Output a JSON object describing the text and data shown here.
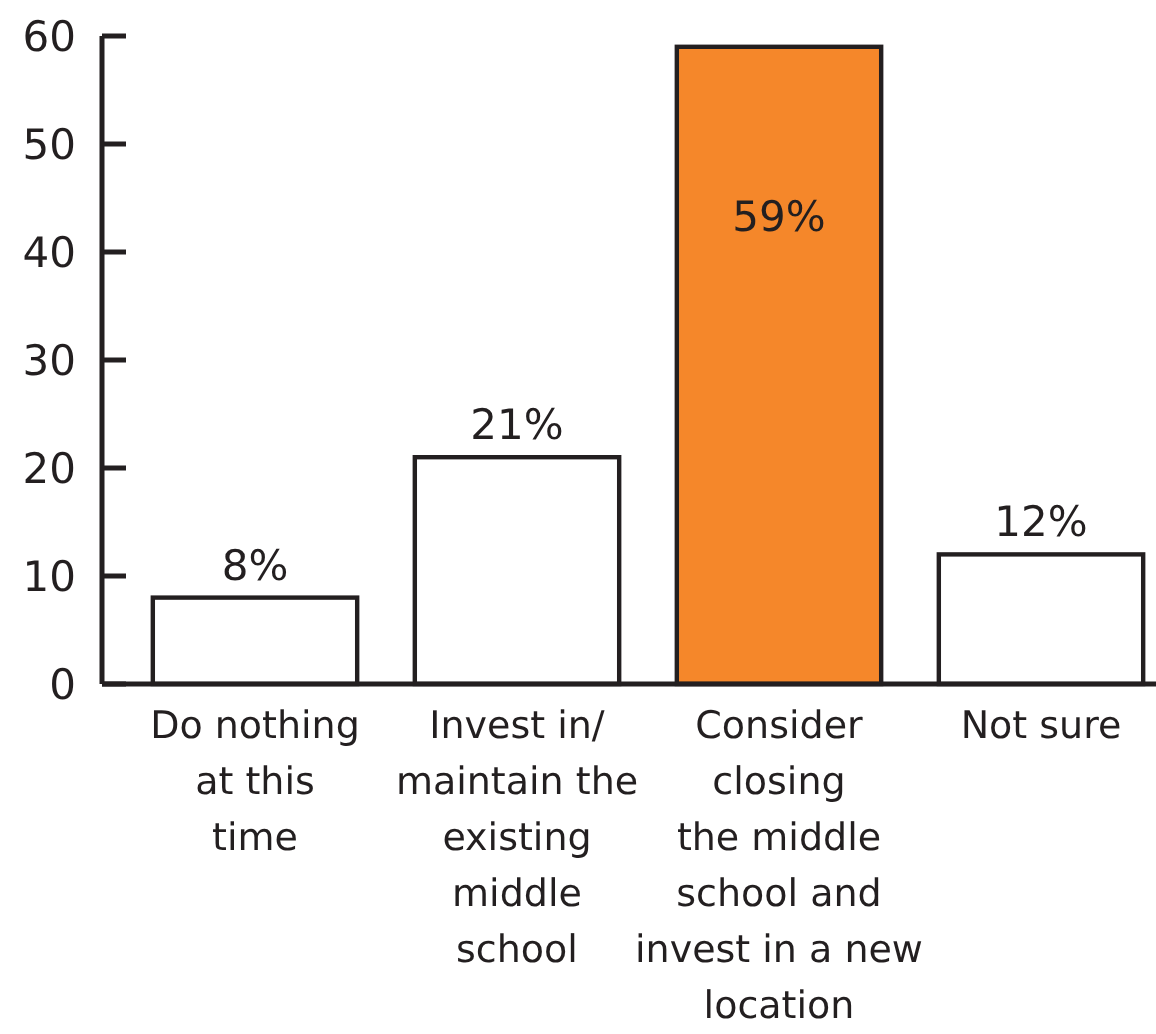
{
  "chart_data": {
    "type": "bar",
    "categories": [
      "Do nothing\nat this\ntime",
      "Invest in/\nmaintain the\nexisting\nmiddle\nschool",
      "Consider\nclosing\nthe middle\nschool and\ninvest in a new\nlocation",
      "Not sure"
    ],
    "values": [
      8,
      21,
      59,
      12
    ],
    "colors": [
      "#ffffff",
      "#ffffff",
      "#f5872a",
      "#ffffff"
    ],
    "value_labels": [
      "8%",
      "21%",
      "59%",
      "12%"
    ],
    "ylim": [
      0,
      60
    ],
    "yticks": [
      0,
      10,
      20,
      30,
      40,
      50,
      60
    ]
  }
}
